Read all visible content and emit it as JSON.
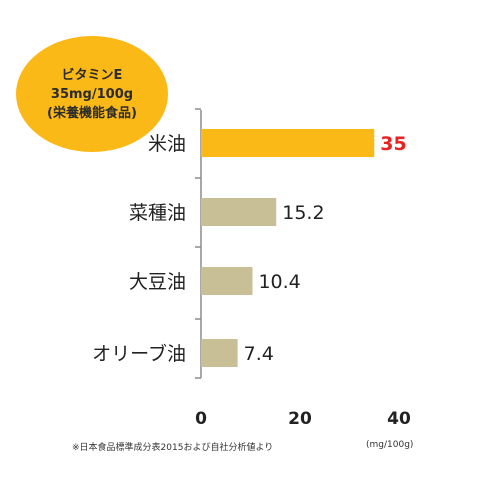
{
  "badge": {
    "line1": "ビタミンE",
    "line2": "35mg/100g",
    "line3": "(栄養機能食品)"
  },
  "colors": {
    "highlight_bar": "#fbb918",
    "other_bars": "#c9bf96",
    "highlight_value": "#e52421",
    "axis": "#8c8c8c"
  },
  "footnote": "※日本食品標準成分表2015および自社分析値より",
  "unit_label": "(mg/100g)",
  "chart_data": {
    "type": "bar",
    "orientation": "horizontal",
    "categories": [
      "米油",
      "菜種油",
      "大豆油",
      "オリーブ油"
    ],
    "values": [
      35,
      15.2,
      10.4,
      7.4
    ],
    "value_labels": [
      "35",
      "15.2",
      "10.4",
      "7.4"
    ],
    "highlight_index": 0,
    "xlim": [
      0,
      40
    ],
    "xticks": [
      0,
      20,
      40
    ],
    "grid": false,
    "title": "",
    "xlabel": "",
    "ylabel": ""
  }
}
